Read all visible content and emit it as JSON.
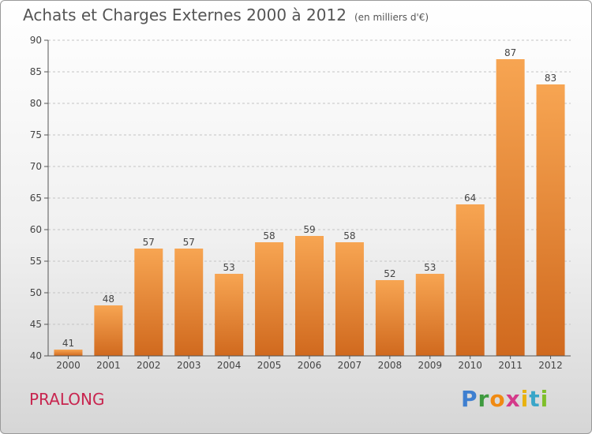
{
  "header": {
    "title": "Achats et Charges Externes 2000 à 2012",
    "subtitle": "(en milliers d'€)"
  },
  "footer": {
    "commune": "PRALONG",
    "logo_text": "Proxiti"
  },
  "colors": {
    "bar_top": "#f7a552",
    "bar_bottom": "#d0691e",
    "commune": "#c8254f"
  },
  "chart_data": {
    "type": "bar",
    "title": "Achats et Charges Externes 2000 à 2012",
    "subtitle": "(en milliers d'€)",
    "categories": [
      "2000",
      "2001",
      "2002",
      "2003",
      "2004",
      "2005",
      "2006",
      "2007",
      "2008",
      "2009",
      "2010",
      "2011",
      "2012"
    ],
    "values": [
      41,
      48,
      57,
      57,
      53,
      58,
      59,
      58,
      52,
      53,
      64,
      87,
      83
    ],
    "ylim": [
      40,
      90
    ],
    "yticks": [
      40,
      45,
      50,
      55,
      60,
      65,
      70,
      75,
      80,
      85,
      90
    ],
    "grid": "horizontal dashed",
    "data_labels": true
  }
}
